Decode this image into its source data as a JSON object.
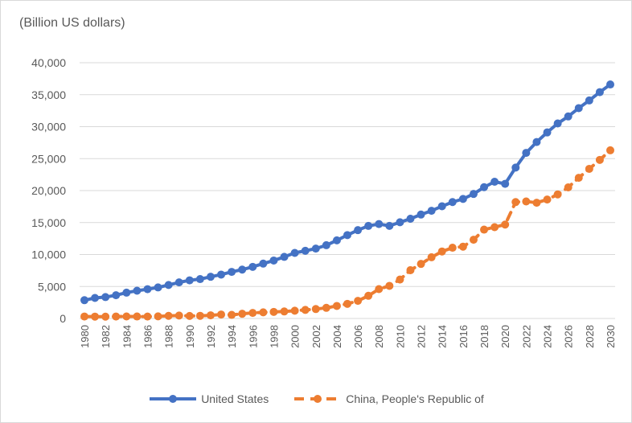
{
  "chart_data": {
    "type": "line",
    "title": "",
    "unit_label": "(Billion US dollars)",
    "xlabel": "",
    "ylabel": "(Billion US dollars)",
    "ylim": [
      0,
      40000
    ],
    "yticks": [
      0,
      5000,
      10000,
      15000,
      20000,
      25000,
      30000,
      35000,
      40000
    ],
    "ytick_labels": [
      "0",
      "5,000",
      "10,000",
      "15,000",
      "20,000",
      "25,000",
      "30,000",
      "35,000",
      "40,000"
    ],
    "x": [
      1980,
      1981,
      1982,
      1983,
      1984,
      1985,
      1986,
      1987,
      1988,
      1989,
      1990,
      1991,
      1992,
      1993,
      1994,
      1995,
      1996,
      1997,
      1998,
      1999,
      2000,
      2001,
      2002,
      2003,
      2004,
      2005,
      2006,
      2007,
      2008,
      2009,
      2010,
      2011,
      2012,
      2013,
      2014,
      2015,
      2016,
      2017,
      2018,
      2019,
      2020,
      2021,
      2022,
      2023,
      2024,
      2025,
      2026,
      2027,
      2028,
      2029,
      2030
    ],
    "xtick_labels": [
      "1980",
      "1982",
      "1984",
      "1986",
      "1988",
      "1990",
      "1992",
      "1994",
      "1996",
      "1998",
      "2000",
      "2002",
      "2004",
      "2006",
      "2008",
      "2010",
      "2012",
      "2014",
      "2016",
      "2018",
      "2020",
      "2022",
      "2024",
      "2026",
      "2028",
      "2030"
    ],
    "grid": true,
    "legend_position": "bottom",
    "series": [
      {
        "name": "United States",
        "color": "#4472c4",
        "style": "solid",
        "values": [
          2857,
          3207,
          3344,
          3634,
          4037,
          4339,
          4580,
          4855,
          5236,
          5642,
          5963,
          6158,
          6520,
          6859,
          7287,
          7640,
          8073,
          8578,
          9063,
          9631,
          10251,
          10582,
          10929,
          11456,
          12217,
          13039,
          13816,
          14474,
          14770,
          14478,
          15049,
          15600,
          16254,
          16843,
          17551,
          18206,
          18695,
          19477,
          20533,
          21381,
          21060,
          23600,
          25900,
          27600,
          29100,
          30500,
          31600,
          32900,
          34100,
          35400,
          36600
        ]
      },
      {
        "name": "China, People's Republic of",
        "color": "#ed7d31",
        "style": "dashed",
        "values": [
          305,
          290,
          284,
          306,
          314,
          309,
          301,
          328,
          410,
          459,
          396,
          413,
          492,
          621,
          562,
          733,
          862,
          962,
          1029,
          1094,
          1211,
          1339,
          1471,
          1660,
          1955,
          2286,
          2752,
          3550,
          4594,
          5102,
          6087,
          7552,
          8532,
          9570,
          10476,
          11062,
          11233,
          12310,
          13895,
          14280,
          14688,
          18200,
          18300,
          18100,
          18600,
          19400,
          20500,
          22000,
          23400,
          24800,
          26300
        ]
      }
    ]
  }
}
